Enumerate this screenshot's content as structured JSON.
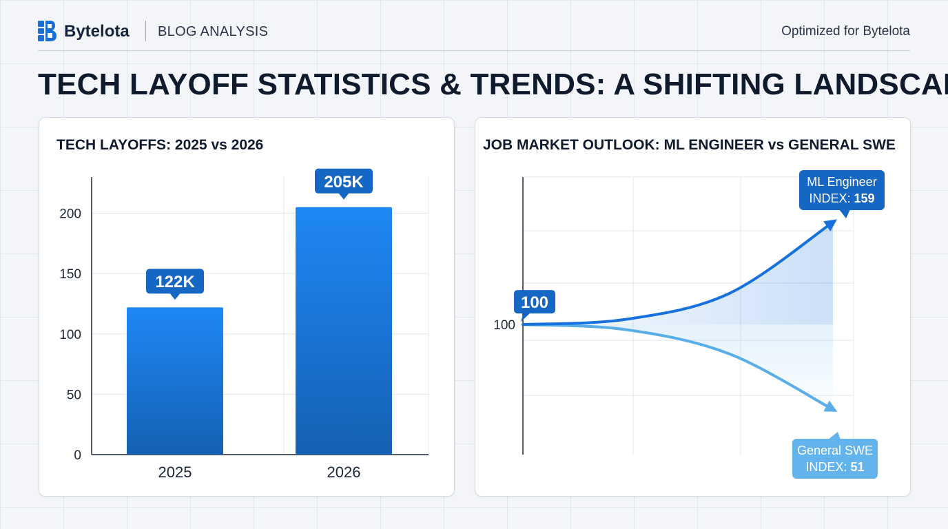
{
  "header": {
    "brand": "Bytelota",
    "section_label": "BLOG ANALYSIS",
    "optimized": "Optimized for Bytelota",
    "logo_icon": "bytelota-logo-icon"
  },
  "page_title": "TECH LAYOFF STATISTICS & TRENDS: A SHIFTING LANDSCAPE",
  "colors": {
    "bar_top": "#1e88f5",
    "bar_bottom": "#1560b3",
    "ml_line": "#1670de",
    "swe_line": "#5aaee8",
    "callout_dark": "#1666c4",
    "callout_light": "#63b3ec"
  },
  "chart_data": [
    {
      "type": "bar",
      "title": "TECH LAYOFFS: 2025 vs 2026",
      "categories": [
        "2025",
        "2026"
      ],
      "values": [
        122,
        205
      ],
      "data_labels": [
        "122K",
        "205K"
      ],
      "yticks": [
        "0",
        "50",
        "100",
        "150",
        "200"
      ],
      "ylim": [
        0,
        230
      ],
      "grid": true
    },
    {
      "type": "line",
      "title": "JOB MARKET OUTLOOK: ML ENGINEER vs GENERAL SWE",
      "x": [
        0,
        1,
        2,
        3
      ],
      "start_value": 100,
      "start_label": "100",
      "ytick_label": "100",
      "series": [
        {
          "name": "ML Engineer",
          "index_label": "INDEX:",
          "end_value": "159",
          "values": [
            100,
            103,
            118,
            159
          ]
        },
        {
          "name": "General SWE",
          "index_label": "INDEX:",
          "end_value": "51",
          "values": [
            100,
            97,
            83,
            51
          ]
        }
      ],
      "ylim": [
        25,
        185
      ],
      "grid": true
    }
  ]
}
